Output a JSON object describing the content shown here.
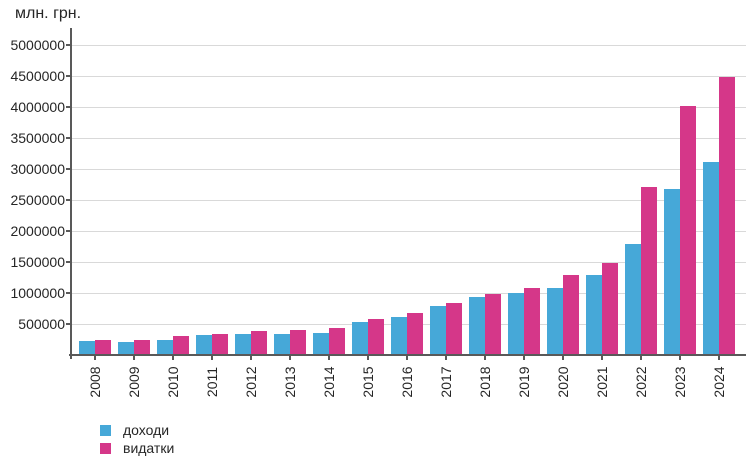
{
  "chart_data": {
    "type": "bar",
    "title": "",
    "ylabel": "млн. грн.",
    "xlabel": "",
    "categories": [
      "2008",
      "2009",
      "2010",
      "2011",
      "2012",
      "2013",
      "2014",
      "2015",
      "2016",
      "2017",
      "2018",
      "2019",
      "2020",
      "2021",
      "2022",
      "2023",
      "2024"
    ],
    "series": [
      {
        "name": "доходи",
        "color": "#46a8d8",
        "values": [
          230000,
          210000,
          240000,
          315000,
          345000,
          340000,
          355000,
          535000,
          615000,
          795000,
          930000,
          1000000,
          1075000,
          1295000,
          1790000,
          2670000,
          3120000
        ]
      },
      {
        "name": "видатки",
        "color": "#d53789",
        "values": [
          245000,
          240000,
          305000,
          335000,
          395000,
          405000,
          430000,
          575000,
          685000,
          840000,
          985000,
          1075000,
          1290000,
          1490000,
          2705000,
          4015000,
          4480000
        ]
      }
    ],
    "ylim": [
      0,
      5250000
    ],
    "yticks": [
      500000,
      1000000,
      1500000,
      2000000,
      2500000,
      3000000,
      3500000,
      4000000,
      4500000,
      5000000
    ],
    "grid": true,
    "legend_position": "bottom-left",
    "axis_color": "#595959",
    "grid_color": "#d9d9d9",
    "text_color": "#262626"
  }
}
